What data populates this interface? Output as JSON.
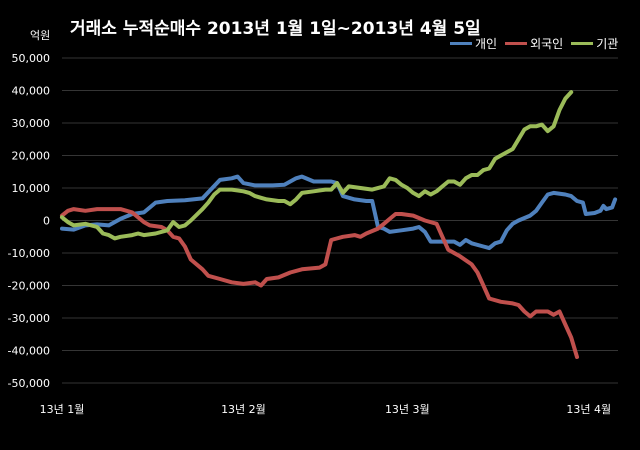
{
  "chart_data": {
    "type": "line",
    "title": "거래소 누적순매수 2013년 1월 1일~2013년 4월 5일",
    "unit_label": "억원",
    "y_ticks": [
      "50,000",
      "40,000",
      "30,000",
      "20,000",
      "10,000",
      "0",
      "-10,000",
      "-20,000",
      "-30,000",
      "-40,000",
      "-50,000"
    ],
    "ylim": [
      -50000,
      50000
    ],
    "x_ticks": [
      "13년 1월",
      "13년 2월",
      "13년 3월",
      "13년 4월"
    ],
    "x_tick_days": [
      0,
      31,
      59,
      90
    ],
    "xlim": [
      0,
      95
    ],
    "legend_position": "top-right",
    "grid": true,
    "series": [
      {
        "name": "개인",
        "color": "#4f81bd",
        "points": [
          [
            0,
            -2500
          ],
          [
            2,
            -2800
          ],
          [
            4,
            -1500
          ],
          [
            6,
            -1200
          ],
          [
            8,
            -1500
          ],
          [
            10,
            500
          ],
          [
            12,
            2000
          ],
          [
            14,
            2500
          ],
          [
            16,
            5500
          ],
          [
            18,
            6000
          ],
          [
            21,
            6200
          ],
          [
            24,
            6800
          ],
          [
            27,
            12500
          ],
          [
            29,
            13000
          ],
          [
            30,
            13500
          ],
          [
            31,
            11500
          ],
          [
            33,
            10800
          ],
          [
            36,
            10800
          ],
          [
            38,
            11000
          ],
          [
            40,
            13000
          ],
          [
            41,
            13500
          ],
          [
            43,
            12000
          ],
          [
            46,
            12000
          ],
          [
            47,
            11500
          ],
          [
            48,
            7500
          ],
          [
            50,
            6500
          ],
          [
            52,
            6000
          ],
          [
            53,
            6000
          ],
          [
            54,
            -2000
          ],
          [
            55,
            -2500
          ],
          [
            56,
            -3500
          ],
          [
            58,
            -3000
          ],
          [
            60,
            -2500
          ],
          [
            61,
            -2000
          ],
          [
            62,
            -3500
          ],
          [
            63,
            -6500
          ],
          [
            65,
            -6500
          ],
          [
            67,
            -6500
          ],
          [
            68,
            -7500
          ],
          [
            69,
            -6000
          ],
          [
            70,
            -7000
          ],
          [
            72,
            -8000
          ],
          [
            73,
            -8500
          ],
          [
            74,
            -7000
          ],
          [
            75,
            -6500
          ],
          [
            76,
            -3000
          ],
          [
            77,
            -1000
          ],
          [
            78,
            0
          ],
          [
            80,
            1500
          ],
          [
            81,
            3000
          ],
          [
            82,
            5500
          ],
          [
            83,
            8000
          ],
          [
            84,
            8500
          ],
          [
            86,
            8000
          ],
          [
            87,
            7500
          ],
          [
            88,
            6000
          ],
          [
            89,
            5500
          ],
          [
            89.5,
            2000
          ],
          [
            91,
            2300
          ],
          [
            92,
            3000
          ],
          [
            92.5,
            4500
          ],
          [
            93,
            3500
          ],
          [
            94,
            4000
          ],
          [
            94.5,
            6500
          ]
        ]
      },
      {
        "name": "외국인",
        "color": "#c0504d",
        "points": [
          [
            0,
            1500
          ],
          [
            1,
            3000
          ],
          [
            2,
            3500
          ],
          [
            4,
            3000
          ],
          [
            6,
            3500
          ],
          [
            8,
            3500
          ],
          [
            10,
            3500
          ],
          [
            12,
            2500
          ],
          [
            13,
            1000
          ],
          [
            14,
            -500
          ],
          [
            15,
            -1500
          ],
          [
            17,
            -2000
          ],
          [
            18,
            -3000
          ],
          [
            19,
            -5000
          ],
          [
            20,
            -5500
          ],
          [
            21,
            -8000
          ],
          [
            22,
            -12000
          ],
          [
            24,
            -15000
          ],
          [
            25,
            -17000
          ],
          [
            27,
            -18000
          ],
          [
            29,
            -19000
          ],
          [
            31,
            -19500
          ],
          [
            33,
            -19000
          ],
          [
            34,
            -20000
          ],
          [
            35,
            -18000
          ],
          [
            37,
            -17500
          ],
          [
            39,
            -16000
          ],
          [
            41,
            -15000
          ],
          [
            44,
            -14500
          ],
          [
            45,
            -13500
          ],
          [
            46,
            -6000
          ],
          [
            48,
            -5000
          ],
          [
            50,
            -4500
          ],
          [
            51,
            -5000
          ],
          [
            52,
            -4000
          ],
          [
            54,
            -2500
          ],
          [
            55,
            -1000
          ],
          [
            56,
            500
          ],
          [
            57,
            2000
          ],
          [
            58,
            2000
          ],
          [
            60,
            1500
          ],
          [
            62,
            0
          ],
          [
            64,
            -1000
          ],
          [
            65,
            -5000
          ],
          [
            66,
            -9000
          ],
          [
            68,
            -11000
          ],
          [
            70,
            -13500
          ],
          [
            71,
            -16000
          ],
          [
            72,
            -20000
          ],
          [
            73,
            -24000
          ],
          [
            75,
            -25000
          ],
          [
            77,
            -25500
          ],
          [
            78,
            -26000
          ],
          [
            79,
            -28000
          ],
          [
            80,
            -29500
          ],
          [
            81,
            -28000
          ],
          [
            83,
            -28000
          ],
          [
            84,
            -29000
          ],
          [
            85,
            -28000
          ],
          [
            86,
            -32000
          ],
          [
            87,
            -36000
          ],
          [
            88,
            -42000
          ]
        ]
      },
      {
        "name": "기관",
        "color": "#9bbb59",
        "points": [
          [
            0,
            1000
          ],
          [
            1,
            -500
          ],
          [
            2,
            -1500
          ],
          [
            4,
            -1000
          ],
          [
            6,
            -2000
          ],
          [
            7,
            -4000
          ],
          [
            8,
            -4500
          ],
          [
            9,
            -5500
          ],
          [
            10,
            -5000
          ],
          [
            12,
            -4500
          ],
          [
            13,
            -4000
          ],
          [
            14,
            -4500
          ],
          [
            16,
            -4000
          ],
          [
            18,
            -3000
          ],
          [
            19,
            -500
          ],
          [
            20,
            -2000
          ],
          [
            21,
            -1500
          ],
          [
            22,
            0
          ],
          [
            24,
            3500
          ],
          [
            25,
            5500
          ],
          [
            26,
            8000
          ],
          [
            27,
            9500
          ],
          [
            29,
            9500
          ],
          [
            31,
            9000
          ],
          [
            32,
            8500
          ],
          [
            33,
            7500
          ],
          [
            34,
            7000
          ],
          [
            35,
            6500
          ],
          [
            37,
            6000
          ],
          [
            38,
            6000
          ],
          [
            39,
            5000
          ],
          [
            40,
            6500
          ],
          [
            41,
            8500
          ],
          [
            43,
            9000
          ],
          [
            45,
            9500
          ],
          [
            46,
            9500
          ],
          [
            47,
            11500
          ],
          [
            48,
            8500
          ],
          [
            49,
            10500
          ],
          [
            51,
            10000
          ],
          [
            53,
            9500
          ],
          [
            55,
            10500
          ],
          [
            56,
            13000
          ],
          [
            57,
            12500
          ],
          [
            58,
            11000
          ],
          [
            59,
            10000
          ],
          [
            60,
            8500
          ],
          [
            61,
            7500
          ],
          [
            62,
            9000
          ],
          [
            63,
            8000
          ],
          [
            64,
            9000
          ],
          [
            65,
            10500
          ],
          [
            66,
            12000
          ],
          [
            67,
            12000
          ],
          [
            68,
            11000
          ],
          [
            69,
            13000
          ],
          [
            70,
            14000
          ],
          [
            71,
            14000
          ],
          [
            72,
            15500
          ],
          [
            73,
            16000
          ],
          [
            74,
            19000
          ],
          [
            75,
            20000
          ],
          [
            76,
            21000
          ],
          [
            77,
            22000
          ],
          [
            78,
            25000
          ],
          [
            79,
            28000
          ],
          [
            80,
            29000
          ],
          [
            81,
            29000
          ],
          [
            82,
            29500
          ],
          [
            83,
            27500
          ],
          [
            84,
            29000
          ],
          [
            85,
            34000
          ],
          [
            86,
            37500
          ],
          [
            87,
            39500
          ]
        ]
      }
    ]
  }
}
